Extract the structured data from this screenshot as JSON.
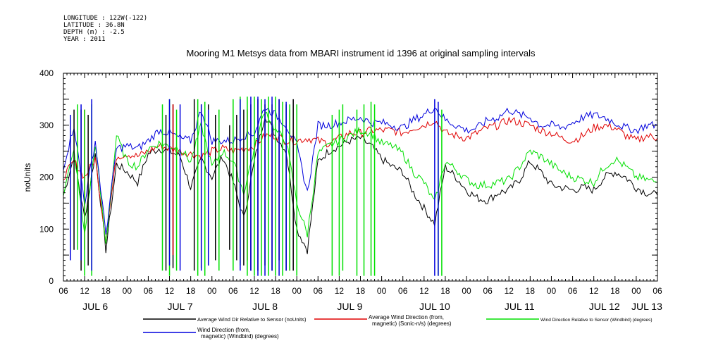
{
  "header": {
    "meta_lines": [
      "LONGITUDE : 122W(-122)",
      "LATITUDE : 36.8N",
      "DEPTH (m) : -2.5",
      "YEAR : 2011"
    ]
  },
  "colors": {
    "black_series": "#000000",
    "red_series": "#e00000",
    "green_series": "#00e000",
    "blue_series": "#0000dd"
  },
  "chart_data": {
    "type": "line",
    "title": "Mooring M1 Metsys data from MBARI instrument id 1396 at original sampling intervals",
    "ylabel": "noUnits",
    "xlabel": "",
    "x_unit": "hours since Jul 6 2011 06:00",
    "xlim": [
      0,
      168
    ],
    "ylim": [
      0,
      400
    ],
    "y_ticks": [
      0,
      100,
      200,
      300,
      400
    ],
    "y_tick_labels": [
      "0",
      "100",
      "200",
      "300",
      "400"
    ],
    "x_hour_tick_labels": [
      "06",
      "12",
      "18",
      "00",
      "06",
      "12",
      "18",
      "00",
      "06",
      "12",
      "18",
      "00",
      "06",
      "12",
      "18",
      "00",
      "06",
      "12",
      "18",
      "00",
      "06",
      "12",
      "18",
      "00",
      "06",
      "12",
      "18",
      "00",
      "06"
    ],
    "x_day_labels": [
      {
        "label": "JUL  6",
        "x": 9
      },
      {
        "label": "JUL  7",
        "x": 33
      },
      {
        "label": "JUL  8",
        "x": 57
      },
      {
        "label": "JUL  9",
        "x": 81
      },
      {
        "label": "JUL 10",
        "x": 105
      },
      {
        "label": "JUL 11",
        "x": 129
      },
      {
        "label": "JUL 12",
        "x": 153
      },
      {
        "label": "JUL 13",
        "x": 165
      }
    ],
    "grid": false,
    "legend": "bottom",
    "series": [
      {
        "name": "Average Wind Dir Relative to Sensor (noUnits)",
        "color": "#000000",
        "x": [
          0,
          3,
          6,
          9,
          12,
          15,
          18,
          21,
          24,
          27,
          30,
          33,
          36,
          39,
          42,
          45,
          48,
          51,
          54,
          57,
          60,
          63,
          66,
          69,
          72,
          75,
          78,
          81,
          84,
          87,
          90,
          93,
          96,
          99,
          102,
          105,
          108,
          111,
          114,
          117,
          120,
          123,
          126,
          129,
          132,
          135,
          138,
          141,
          144,
          147,
          150,
          153,
          156,
          159,
          162,
          165,
          168
        ],
        "values": [
          165,
          240,
          120,
          245,
          60,
          225,
          210,
          190,
          245,
          255,
          250,
          240,
          180,
          235,
          200,
          240,
          190,
          120,
          230,
          320,
          280,
          250,
          100,
          60,
          230,
          250,
          260,
          270,
          275,
          260,
          235,
          220,
          210,
          170,
          140,
          110,
          220,
          200,
          175,
          160,
          155,
          170,
          175,
          195,
          230,
          210,
          185,
          180,
          175,
          180,
          175,
          200,
          210,
          200,
          180,
          170,
          165
        ]
      },
      {
        "name": "Average Wind Direction (from, magnetic) (Sonic-n/s) (degrees)",
        "color": "#e00000",
        "x": [
          0,
          3,
          6,
          9,
          12,
          15,
          18,
          21,
          24,
          27,
          30,
          33,
          36,
          39,
          42,
          45,
          48,
          51,
          54,
          57,
          60,
          63,
          66,
          69,
          72,
          75,
          78,
          81,
          84,
          87,
          90,
          93,
          96,
          99,
          102,
          105,
          108,
          111,
          114,
          117,
          120,
          123,
          126,
          129,
          132,
          135,
          138,
          141,
          144,
          147,
          150,
          153,
          156,
          159,
          162,
          165,
          168
        ],
        "values": [
          200,
          230,
          200,
          235,
          80,
          240,
          245,
          240,
          250,
          260,
          255,
          250,
          245,
          240,
          250,
          255,
          250,
          255,
          260,
          280,
          280,
          270,
          270,
          275,
          270,
          265,
          275,
          285,
          285,
          290,
          290,
          290,
          285,
          295,
          300,
          310,
          285,
          280,
          275,
          285,
          295,
          300,
          310,
          305,
          300,
          290,
          285,
          275,
          270,
          280,
          295,
          300,
          295,
          280,
          270,
          280,
          275
        ]
      },
      {
        "name": "Wind Direction Relative to Sensor (Windbird) (degrees)",
        "color": "#00e000",
        "x": [
          0,
          3,
          6,
          9,
          12,
          15,
          18,
          21,
          24,
          27,
          30,
          33,
          36,
          39,
          42,
          45,
          48,
          51,
          54,
          57,
          60,
          63,
          66,
          69,
          72,
          75,
          78,
          81,
          84,
          87,
          90,
          93,
          96,
          99,
          102,
          105,
          108,
          111,
          114,
          117,
          120,
          123,
          126,
          129,
          132,
          135,
          138,
          141,
          144,
          147,
          150,
          153,
          156,
          159,
          162,
          165,
          168
        ],
        "values": [
          170,
          250,
          90,
          265,
          70,
          280,
          230,
          220,
          255,
          265,
          260,
          255,
          230,
          300,
          220,
          250,
          230,
          170,
          255,
          330,
          290,
          270,
          150,
          90,
          245,
          260,
          270,
          280,
          290,
          285,
          265,
          260,
          245,
          210,
          190,
          150,
          230,
          215,
          195,
          185,
          185,
          190,
          195,
          220,
          250,
          240,
          225,
          210,
          200,
          195,
          190,
          220,
          235,
          220,
          200,
          195,
          190
        ]
      },
      {
        "name": "Wind Direction (from, magnetic) (Windbird) (degrees)",
        "color": "#0000dd",
        "x": [
          0,
          3,
          6,
          9,
          12,
          15,
          18,
          21,
          24,
          27,
          30,
          33,
          36,
          39,
          42,
          45,
          48,
          51,
          54,
          57,
          60,
          63,
          66,
          69,
          72,
          75,
          78,
          81,
          84,
          87,
          90,
          93,
          96,
          99,
          102,
          105,
          108,
          111,
          114,
          117,
          120,
          123,
          126,
          129,
          132,
          135,
          138,
          141,
          144,
          147,
          150,
          153,
          156,
          159,
          162,
          165,
          168
        ],
        "values": [
          220,
          300,
          150,
          270,
          90,
          255,
          260,
          255,
          270,
          290,
          285,
          275,
          270,
          330,
          270,
          270,
          270,
          280,
          285,
          335,
          320,
          300,
          260,
          170,
          300,
          300,
          305,
          310,
          315,
          305,
          305,
          300,
          295,
          310,
          320,
          335,
          310,
          300,
          290,
          295,
          310,
          315,
          330,
          320,
          315,
          300,
          300,
          295,
          305,
          315,
          320,
          315,
          305,
          295,
          290,
          300,
          300
        ]
      }
    ],
    "spikes": {
      "black": [
        {
          "x": 3,
          "y1": 60,
          "y2": 330
        },
        {
          "x": 5,
          "y1": 20,
          "y2": 330
        },
        {
          "x": 7,
          "y1": 30,
          "y2": 320
        },
        {
          "x": 29,
          "y1": 20,
          "y2": 320
        },
        {
          "x": 31,
          "y1": 25,
          "y2": 340
        },
        {
          "x": 37,
          "y1": 20,
          "y2": 350
        },
        {
          "x": 39,
          "y1": 25,
          "y2": 340
        },
        {
          "x": 41,
          "y1": 30,
          "y2": 340
        },
        {
          "x": 43,
          "y1": 40,
          "y2": 320
        },
        {
          "x": 47,
          "y1": 60,
          "y2": 300
        },
        {
          "x": 49,
          "y1": 40,
          "y2": 320
        },
        {
          "x": 51,
          "y1": 30,
          "y2": 330
        },
        {
          "x": 53,
          "y1": 20,
          "y2": 340
        },
        {
          "x": 55,
          "y1": 20,
          "y2": 350
        },
        {
          "x": 57,
          "y1": 30,
          "y2": 340
        },
        {
          "x": 59,
          "y1": 20,
          "y2": 340
        },
        {
          "x": 61,
          "y1": 40,
          "y2": 350
        },
        {
          "x": 63,
          "y1": 20,
          "y2": 340
        },
        {
          "x": 65,
          "y1": 20,
          "y2": 350
        }
      ],
      "green": [
        {
          "x": 4,
          "y1": 60,
          "y2": 340
        },
        {
          "x": 6,
          "y1": 10,
          "y2": 330
        },
        {
          "x": 8,
          "y1": 10,
          "y2": 340
        },
        {
          "x": 28,
          "y1": 20,
          "y2": 340
        },
        {
          "x": 30,
          "y1": 10,
          "y2": 350
        },
        {
          "x": 32,
          "y1": 20,
          "y2": 330
        },
        {
          "x": 38,
          "y1": 10,
          "y2": 350
        },
        {
          "x": 40,
          "y1": 10,
          "y2": 345
        },
        {
          "x": 44,
          "y1": 20,
          "y2": 330
        },
        {
          "x": 48,
          "y1": 20,
          "y2": 350
        },
        {
          "x": 50,
          "y1": 30,
          "y2": 355
        },
        {
          "x": 52,
          "y1": 10,
          "y2": 355
        },
        {
          "x": 54,
          "y1": 10,
          "y2": 355
        },
        {
          "x": 56,
          "y1": 10,
          "y2": 350
        },
        {
          "x": 58,
          "y1": 10,
          "y2": 355
        },
        {
          "x": 60,
          "y1": 10,
          "y2": 355
        },
        {
          "x": 62,
          "y1": 10,
          "y2": 345
        },
        {
          "x": 64,
          "y1": 20,
          "y2": 340
        },
        {
          "x": 66,
          "y1": 10,
          "y2": 340
        },
        {
          "x": 76,
          "y1": 10,
          "y2": 320
        },
        {
          "x": 78,
          "y1": 10,
          "y2": 330
        },
        {
          "x": 79,
          "y1": 20,
          "y2": 340
        },
        {
          "x": 83,
          "y1": 10,
          "y2": 330
        },
        {
          "x": 85,
          "y1": 10,
          "y2": 340
        },
        {
          "x": 87,
          "y1": 10,
          "y2": 345
        },
        {
          "x": 88,
          "y1": 10,
          "y2": 340
        },
        {
          "x": 106,
          "y1": 10,
          "y2": 330
        },
        {
          "x": 107,
          "y1": 10,
          "y2": 330
        }
      ],
      "blue": [
        {
          "x": 2,
          "y1": 40,
          "y2": 320
        },
        {
          "x": 5,
          "y1": 40,
          "y2": 340
        },
        {
          "x": 8,
          "y1": 20,
          "y2": 350
        },
        {
          "x": 30,
          "y1": 30,
          "y2": 350
        },
        {
          "x": 33,
          "y1": 20,
          "y2": 340
        },
        {
          "x": 39,
          "y1": 20,
          "y2": 340
        },
        {
          "x": 41,
          "y1": 30,
          "y2": 330
        },
        {
          "x": 50,
          "y1": 20,
          "y2": 350
        },
        {
          "x": 53,
          "y1": 20,
          "y2": 355
        },
        {
          "x": 55,
          "y1": 10,
          "y2": 355
        },
        {
          "x": 57,
          "y1": 10,
          "y2": 350
        },
        {
          "x": 59,
          "y1": 20,
          "y2": 355
        },
        {
          "x": 61,
          "y1": 10,
          "y2": 350
        },
        {
          "x": 63,
          "y1": 20,
          "y2": 345
        },
        {
          "x": 105,
          "y1": 10,
          "y2": 350
        },
        {
          "x": 106,
          "y1": 10,
          "y2": 345
        }
      ],
      "red": [
        {
          "x": 6,
          "y1": 60,
          "y2": 330
        },
        {
          "x": 31,
          "y1": 50,
          "y2": 340
        },
        {
          "x": 52,
          "y1": 40,
          "y2": 330
        },
        {
          "x": 64,
          "y1": 20,
          "y2": 330
        }
      ]
    }
  },
  "legend_items": [
    {
      "line1": "Average Wind Dir Relative to Sensor (noUnits)",
      "line2": "",
      "color": "#000000"
    },
    {
      "line1": "Average Wind Direction (from,",
      "line2": "magnetic) (Sonic-n/s) (degrees)",
      "color": "#e00000"
    },
    {
      "line1": "Wind Direction Relative to Sensor (Windbird) (degrees)",
      "line2": "",
      "color": "#00e000"
    },
    {
      "line1": "Wind Direction (from,",
      "line2": "magnetic) (Windbird) (degrees)",
      "color": "#0000dd"
    }
  ]
}
